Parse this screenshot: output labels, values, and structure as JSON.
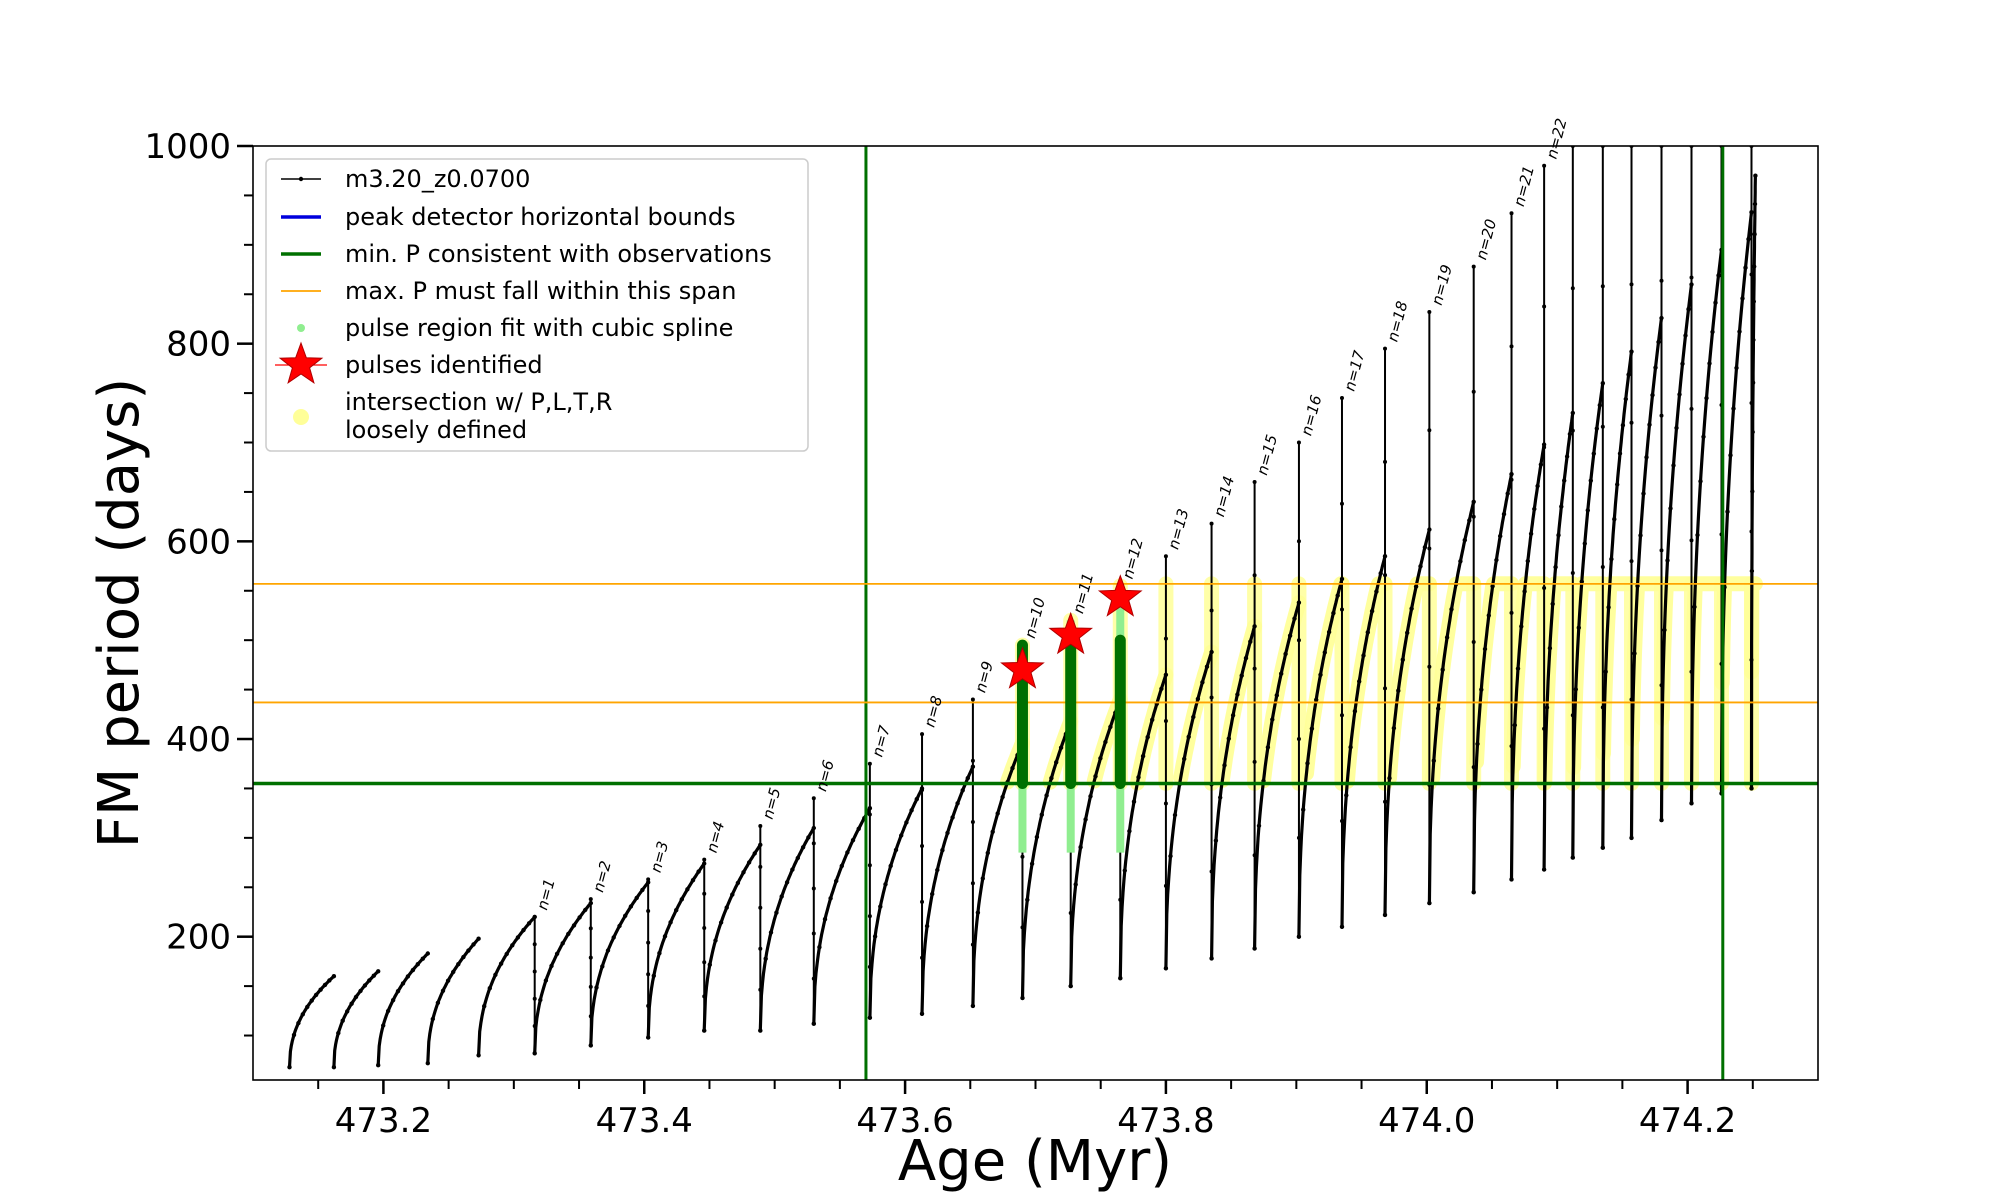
{
  "chart_data": {
    "type": "line",
    "xlabel": "Age (Myr)",
    "ylabel": "FM period (days)",
    "xlim": [
      473.1,
      474.3
    ],
    "ylim": [
      55,
      1000
    ],
    "xticks": [
      473.2,
      473.4,
      473.6,
      473.8,
      474.0,
      474.2
    ],
    "xtick_labels": [
      "473.2",
      "473.4",
      "473.6",
      "473.8",
      "474.0",
      "474.2"
    ],
    "yticks": [
      200,
      400,
      600,
      800,
      1000
    ],
    "ytick_labels": [
      "200",
      "400",
      "600",
      "800",
      "1000"
    ],
    "legend_position": "upper-left",
    "legend": [
      {
        "label": "m3.20_z0.0700",
        "marker": "line-dot",
        "color": "#000000"
      },
      {
        "label": "peak detector horizontal bounds",
        "marker": "line",
        "color": "#0000dd"
      },
      {
        "label": "min. P consistent with observations",
        "marker": "line",
        "color": "#007000"
      },
      {
        "label": "max. P must fall within this span",
        "marker": "line-thin",
        "color": "#ffa500"
      },
      {
        "label": "pulse region fit with cubic spline",
        "marker": "dot",
        "color": "#90ee90"
      },
      {
        "label": "pulses identified",
        "marker": "star",
        "color": "#ff0000"
      },
      {
        "label": "intersection w/ P,L,T,R\nloosely defined",
        "marker": "dot-big",
        "color": "#ffff99"
      }
    ],
    "vertical_lines": [
      473.57,
      474.227
    ],
    "min_period_line": 355,
    "max_period_span": [
      437,
      557
    ],
    "pulse_label_prefix": "n=",
    "cycles": [
      {
        "t0": 473.128,
        "t1": 473.162,
        "min": 68,
        "max": 160,
        "spike": null,
        "n": null
      },
      {
        "t0": 473.162,
        "t1": 473.196,
        "min": 68,
        "max": 165,
        "spike": null,
        "n": null
      },
      {
        "t0": 473.196,
        "t1": 473.234,
        "min": 70,
        "max": 183,
        "spike": null,
        "n": null
      },
      {
        "t0": 473.234,
        "t1": 473.273,
        "min": 72,
        "max": 198,
        "spike": null,
        "n": null
      },
      {
        "t0": 473.273,
        "t1": 473.316,
        "min": 80,
        "max": 220,
        "spike": 220,
        "n": 1
      },
      {
        "t0": 473.316,
        "t1": 473.359,
        "min": 82,
        "max": 234,
        "spike": 238,
        "n": 2
      },
      {
        "t0": 473.359,
        "t1": 473.403,
        "min": 90,
        "max": 255,
        "spike": 258,
        "n": 3
      },
      {
        "t0": 473.403,
        "t1": 473.446,
        "min": 98,
        "max": 274,
        "spike": 278,
        "n": 4
      },
      {
        "t0": 473.446,
        "t1": 473.489,
        "min": 105,
        "max": 293,
        "spike": 312,
        "n": 5
      },
      {
        "t0": 473.489,
        "t1": 473.53,
        "min": 105,
        "max": 310,
        "spike": 340,
        "n": 6
      },
      {
        "t0": 473.53,
        "t1": 473.573,
        "min": 112,
        "max": 330,
        "spike": 375,
        "n": 7
      },
      {
        "t0": 473.573,
        "t1": 473.613,
        "min": 118,
        "max": 350,
        "spike": 405,
        "n": 8
      },
      {
        "t0": 473.613,
        "t1": 473.652,
        "min": 122,
        "max": 372,
        "spike": 440,
        "n": 9
      },
      {
        "t0": 473.652,
        "t1": 473.69,
        "min": 130,
        "max": 396,
        "spike": 495,
        "n": 10
      },
      {
        "t0": 473.69,
        "t1": 473.727,
        "min": 138,
        "max": 418,
        "spike": 520,
        "n": 11
      },
      {
        "t0": 473.727,
        "t1": 473.765,
        "min": 150,
        "max": 440,
        "spike": 555,
        "n": 12
      },
      {
        "t0": 473.765,
        "t1": 473.8,
        "min": 158,
        "max": 465,
        "spike": 585,
        "n": 13
      },
      {
        "t0": 473.8,
        "t1": 473.835,
        "min": 168,
        "max": 488,
        "spike": 618,
        "n": 14
      },
      {
        "t0": 473.835,
        "t1": 473.868,
        "min": 178,
        "max": 514,
        "spike": 660,
        "n": 15
      },
      {
        "t0": 473.868,
        "t1": 473.902,
        "min": 188,
        "max": 538,
        "spike": 700,
        "n": 16
      },
      {
        "t0": 473.902,
        "t1": 473.935,
        "min": 200,
        "max": 562,
        "spike": 745,
        "n": 17
      },
      {
        "t0": 473.935,
        "t1": 473.968,
        "min": 210,
        "max": 585,
        "spike": 795,
        "n": 18
      },
      {
        "t0": 473.968,
        "t1": 474.002,
        "min": 222,
        "max": 612,
        "spike": 832,
        "n": 19
      },
      {
        "t0": 474.002,
        "t1": 474.036,
        "min": 234,
        "max": 640,
        "spike": 878,
        "n": 20
      },
      {
        "t0": 474.036,
        "t1": 474.065,
        "min": 245,
        "max": 668,
        "spike": 932,
        "n": 21
      },
      {
        "t0": 474.065,
        "t1": 474.09,
        "min": 258,
        "max": 698,
        "spike": 980,
        "n": 22
      },
      {
        "t0": 474.09,
        "t1": 474.112,
        "min": 268,
        "max": 730,
        "spike": 1000,
        "n": null
      },
      {
        "t0": 474.112,
        "t1": 474.135,
        "min": 280,
        "max": 760,
        "spike": 1000,
        "n": null
      },
      {
        "t0": 474.135,
        "t1": 474.157,
        "min": 290,
        "max": 792,
        "spike": 1000,
        "n": null
      },
      {
        "t0": 474.157,
        "t1": 474.18,
        "min": 300,
        "max": 826,
        "spike": 1000,
        "n": null
      },
      {
        "t0": 474.18,
        "t1": 474.203,
        "min": 318,
        "max": 860,
        "spike": 1000,
        "n": null
      },
      {
        "t0": 474.203,
        "t1": 474.226,
        "min": 335,
        "max": 895,
        "spike": 1000,
        "n": null
      },
      {
        "t0": 474.226,
        "t1": 474.249,
        "min": 345,
        "max": 933,
        "spike": 1000,
        "n": null
      },
      {
        "t0": 474.249,
        "t1": 474.252,
        "min": 350,
        "max": 970,
        "spike": null,
        "n": null
      }
    ],
    "pulses_identified": [
      {
        "n": 10,
        "x": 473.69,
        "y": 470
      },
      {
        "n": 11,
        "x": 473.727,
        "y": 505
      },
      {
        "n": 12,
        "x": 473.765,
        "y": 543
      }
    ]
  }
}
